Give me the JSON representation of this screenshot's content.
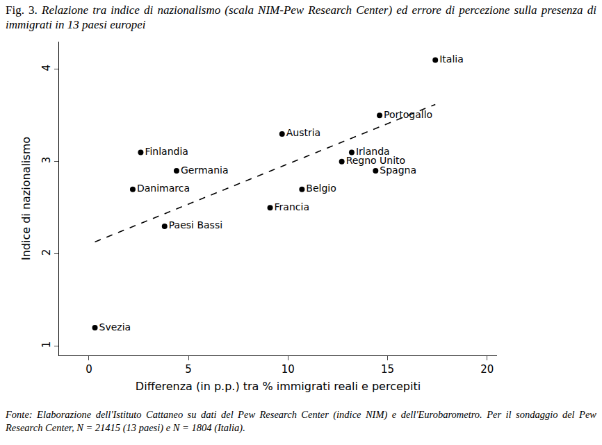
{
  "chart_data": {
    "type": "scatter",
    "figure_label": "Fig. 3.",
    "title": "Relazione tra indice di nazionalismo (scala NIM-Pew Research Center) ed errore di percezione sulla presenza di immigrati in 13 paesi europei",
    "x_label": "Differenza (in p.p.) tra % immigrati reali e percepiti",
    "y_label": "Indice di nazionalismo",
    "labels": [
      "Svezia",
      "Danimarca",
      "Finlandia",
      "Paesi Bassi",
      "Germania",
      "Francia",
      "Austria",
      "Belgio",
      "Regno Unito",
      "Irlanda",
      "Spagna",
      "Portogallo",
      "Italia"
    ],
    "x": [
      0.3,
      2.2,
      2.6,
      3.8,
      4.4,
      9.1,
      9.7,
      10.7,
      12.7,
      13.2,
      14.4,
      14.6,
      17.4
    ],
    "y": [
      1.2,
      2.7,
      3.1,
      2.3,
      2.9,
      2.5,
      3.3,
      2.7,
      3.0,
      3.1,
      2.9,
      3.5,
      4.1
    ],
    "color": "#000000",
    "marker": "circle",
    "fit_line": {
      "x": [
        0.3,
        17.4
      ],
      "y": [
        2.13,
        3.62
      ],
      "line_style": "dashed",
      "color": "#000000"
    },
    "xlim": [
      -1.5,
      20.5
    ],
    "ylim": [
      0.9,
      4.3
    ],
    "xticks": [
      0,
      5,
      10,
      15,
      20
    ],
    "yticks": [
      1,
      2,
      3,
      4
    ],
    "grid": false,
    "source": "Fonte: Elaborazione dell'Istituto Cattaneo su dati del Pew Research Center (indice NIM) e dell'Eurobarometro. Per il sondaggio del Pew Research Center, N = 21415 (13 paesi) e N = 1804 (Italia)."
  }
}
